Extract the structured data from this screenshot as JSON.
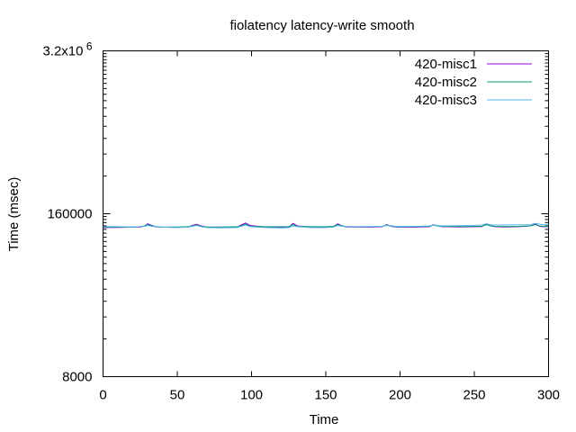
{
  "chart_data": {
    "type": "line",
    "title": "fiolatency latency-write smooth",
    "xlabel": "Time",
    "ylabel": "Time (msec)",
    "xlim": [
      0,
      300
    ],
    "ylim": [
      8000,
      3200000
    ],
    "yscale": "log",
    "grid": false,
    "legend_position": "top-right",
    "x_ticks": [
      0,
      50,
      100,
      150,
      200,
      250,
      300
    ],
    "x_tick_labels": [
      "0",
      "50",
      "100",
      "150",
      "200",
      "250",
      "300"
    ],
    "y_ticks": [
      8000,
      160000,
      3200000
    ],
    "y_tick_labels": [
      {
        "base": "8000",
        "sup": ""
      },
      {
        "base": "160000",
        "sup": ""
      },
      {
        "base": "3.2x10",
        "sup": "6"
      }
    ],
    "x": [
      0,
      10,
      20,
      25,
      28,
      30,
      33,
      36,
      40,
      50,
      57,
      60,
      63,
      66,
      70,
      80,
      90,
      93,
      96,
      99,
      110,
      120,
      125,
      128,
      131,
      140,
      150,
      155,
      158,
      161,
      164,
      170,
      180,
      188,
      191,
      194,
      197,
      210,
      220,
      222,
      225,
      228,
      240,
      250,
      255,
      258,
      261,
      264,
      270,
      280,
      288,
      291,
      294,
      297,
      300
    ],
    "series": [
      {
        "name": "420-misc1",
        "color": "#9400d3",
        "values": [
          124000,
          124500,
          125000,
          125000,
          128000,
          133000,
          129000,
          125500,
          125000,
          125000,
          125000,
          129000,
          132000,
          128000,
          125000,
          125000,
          125000,
          130000,
          135000,
          129000,
          125000,
          125000,
          125500,
          134000,
          128000,
          125000,
          125000,
          126000,
          133000,
          128000,
          125500,
          125500,
          125000,
          126000,
          131000,
          127000,
          125500,
          125000,
          126000,
          131000,
          129000,
          126000,
          125500,
          126000,
          126000,
          133000,
          128000,
          126000,
          125500,
          126000,
          128000,
          133000,
          127000,
          126000,
          126000
        ]
      },
      {
        "name": "420-misc2",
        "color": "#009e73",
        "values": [
          125000,
          125000,
          125500,
          126000,
          128000,
          131000,
          128000,
          126000,
          125000,
          125500,
          126000,
          128000,
          130000,
          127000,
          125500,
          125500,
          126000,
          128000,
          132000,
          127000,
          126000,
          126000,
          126500,
          131000,
          127000,
          126000,
          126000,
          127000,
          131000,
          128000,
          126500,
          126000,
          126000,
          127000,
          130000,
          128000,
          126000,
          126000,
          127000,
          130000,
          128000,
          127000,
          126500,
          127000,
          127000,
          131000,
          128000,
          127000,
          126500,
          127000,
          128000,
          131000,
          128000,
          127000,
          127000
        ]
      },
      {
        "name": "420-misc3",
        "color": "#56b4e9",
        "values": [
          126000,
          126000,
          125500,
          126000,
          127000,
          129000,
          127000,
          126000,
          125000,
          124000,
          125000,
          127000,
          129000,
          126000,
          124000,
          123500,
          124000,
          127000,
          130000,
          126000,
          124000,
          123000,
          124000,
          128000,
          126000,
          124000,
          124000,
          125000,
          129000,
          127000,
          126000,
          126000,
          126500,
          127000,
          129000,
          128000,
          127000,
          127000,
          128000,
          130000,
          129000,
          128000,
          128500,
          129000,
          130000,
          133000,
          131000,
          130000,
          130000,
          130500,
          131000,
          134000,
          132000,
          131000,
          131000
        ]
      }
    ]
  }
}
